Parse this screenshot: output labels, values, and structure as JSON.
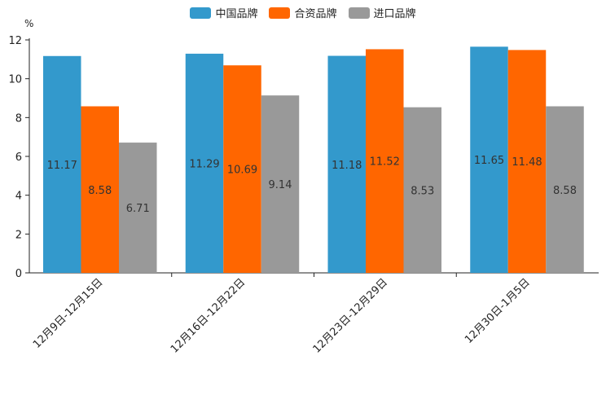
{
  "chart_data": {
    "type": "bar",
    "title": "",
    "unit_label": "%",
    "categories": [
      "12月9日-12月15日",
      "12月16日-12月22日",
      "12月23日-12月29日",
      "12月30日-1月5日"
    ],
    "series": [
      {
        "name": "中国品牌",
        "color": "#3399CC",
        "values": [
          11.17,
          11.29,
          11.18,
          11.65
        ]
      },
      {
        "name": "合资品牌",
        "color": "#FF6600",
        "values": [
          8.58,
          10.69,
          11.52,
          11.48
        ]
      },
      {
        "name": "进口品牌",
        "color": "#999999",
        "values": [
          6.71,
          9.14,
          8.53,
          8.58
        ]
      }
    ],
    "ylim": [
      0,
      12
    ],
    "yticks": [
      0,
      2,
      4,
      6,
      8,
      10,
      12
    ],
    "legend_position": "top-center",
    "grid": false
  }
}
